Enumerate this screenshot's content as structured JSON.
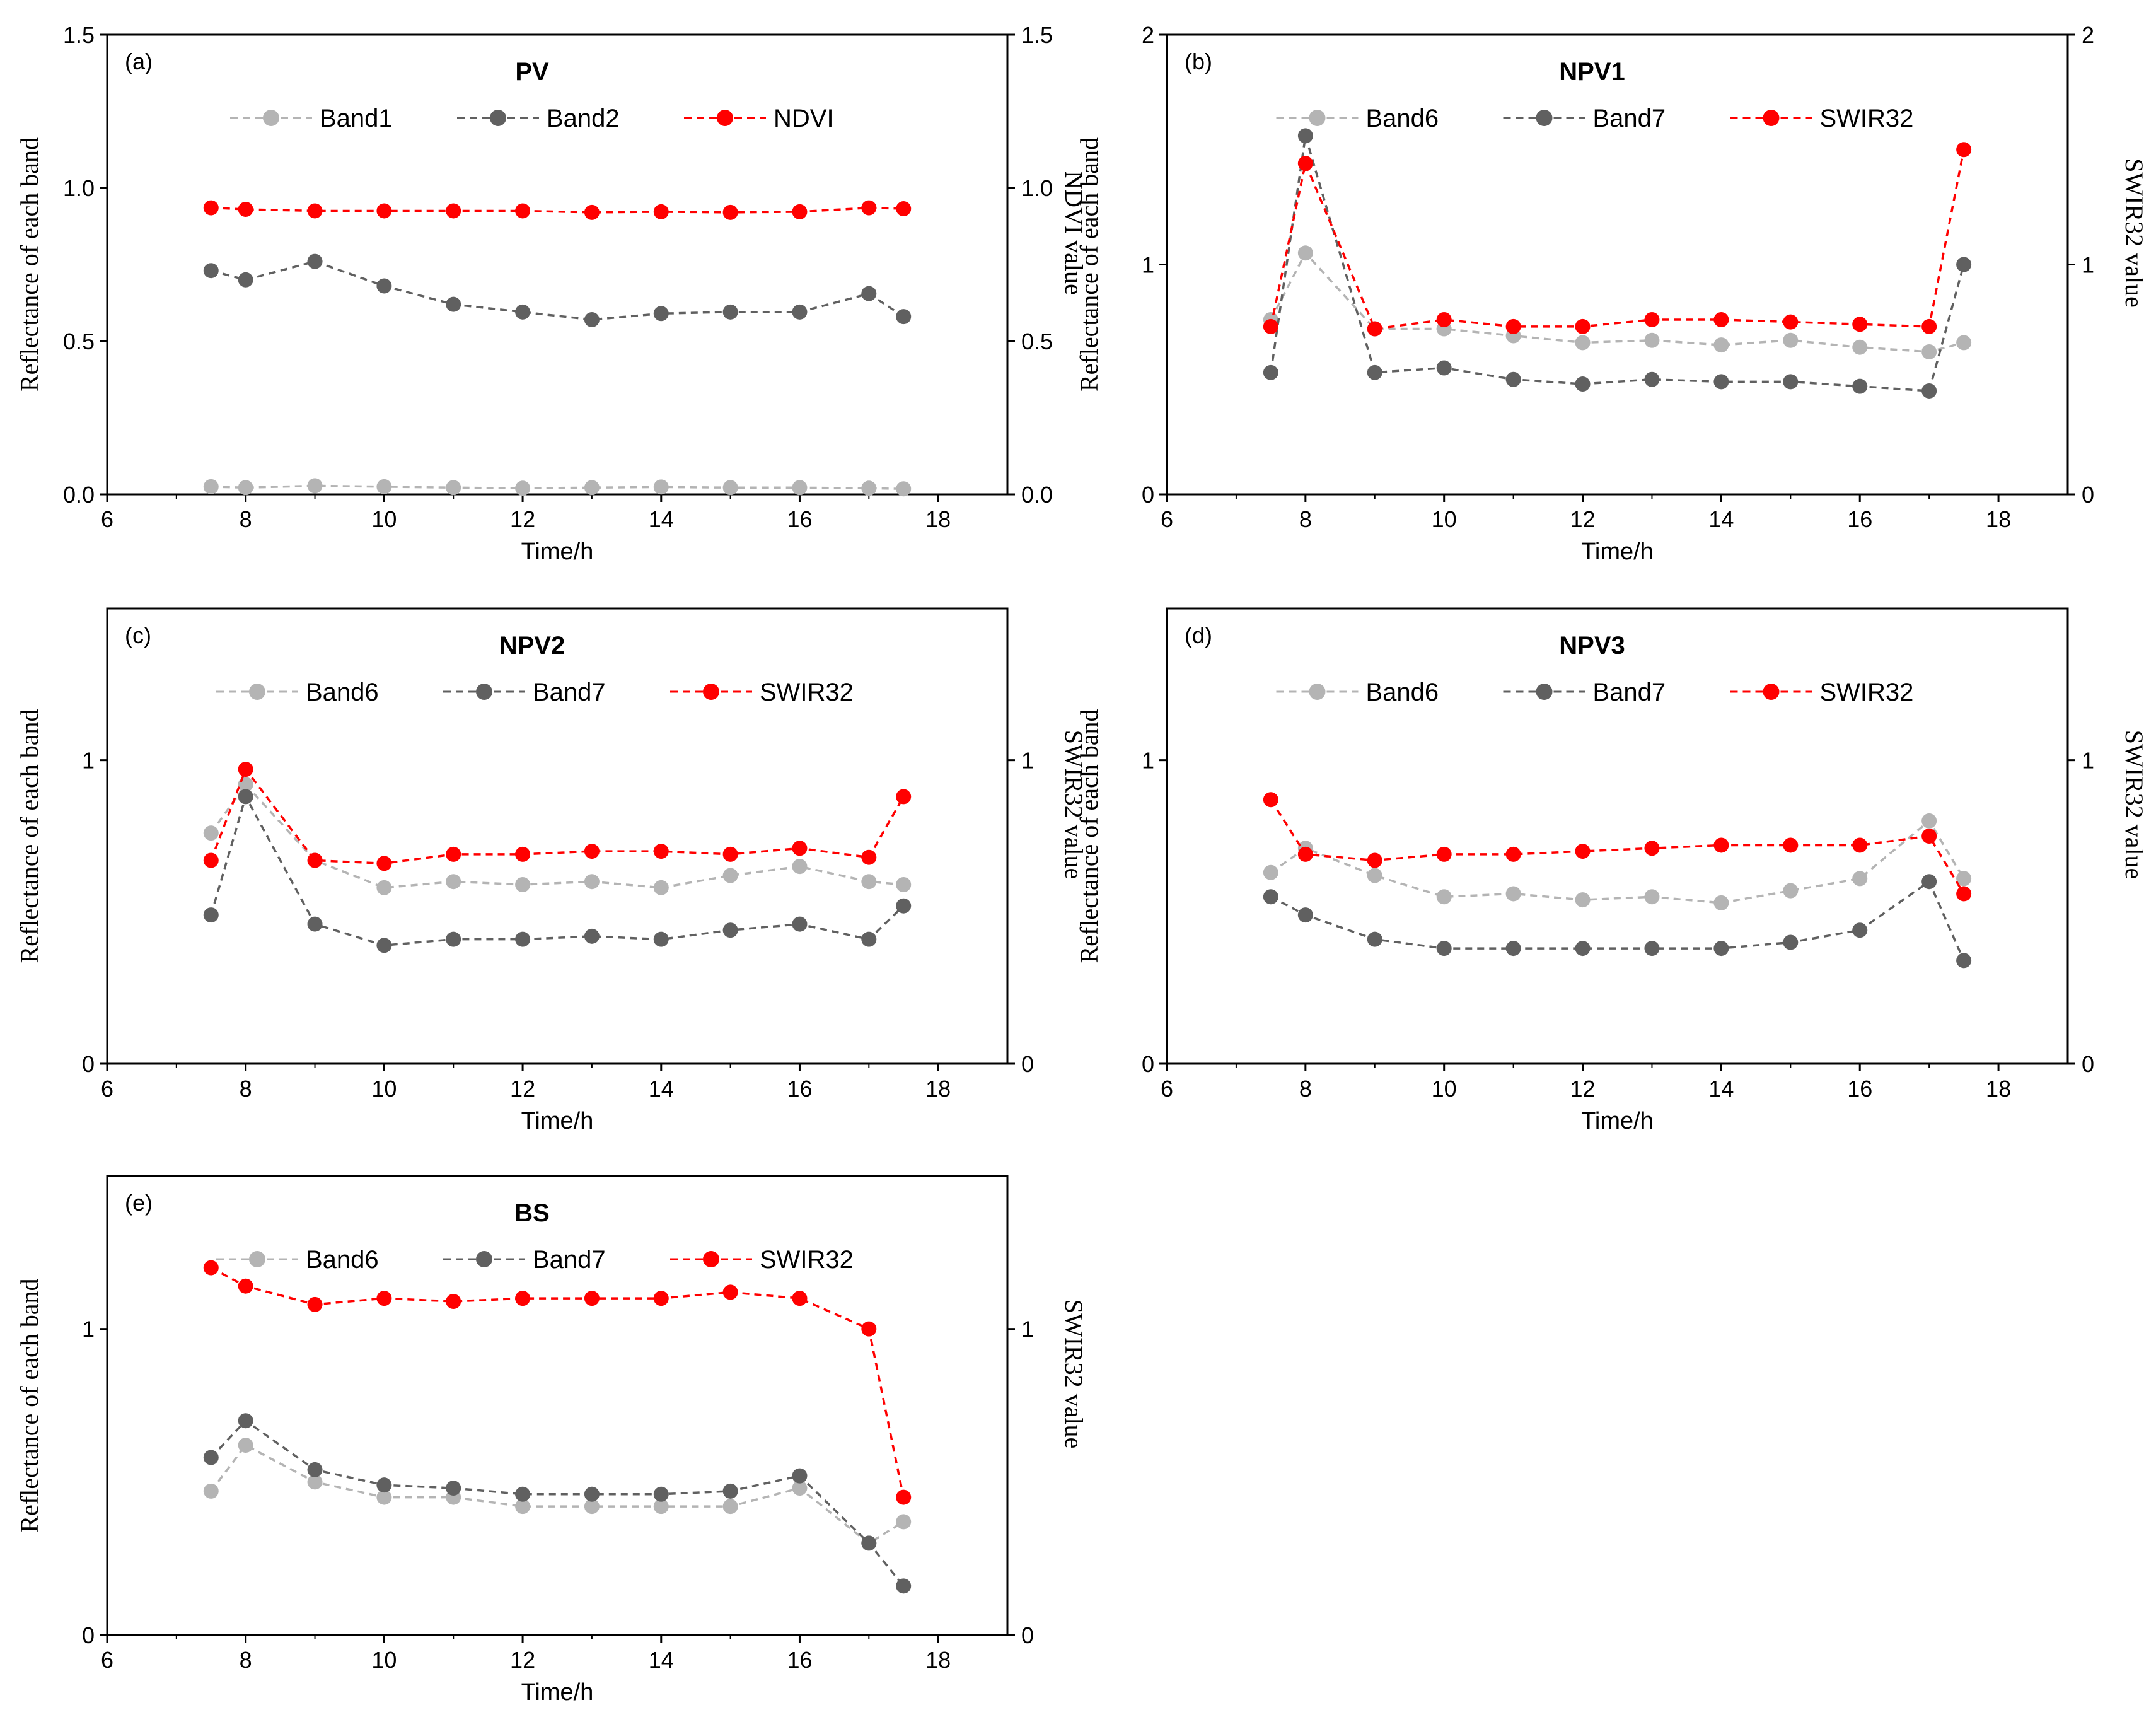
{
  "colors": {
    "band_light": "#b4b4b4",
    "band_dark": "#606060",
    "index": "#ff0000",
    "frame": "#000000"
  },
  "chart_data": [
    {
      "type": "line",
      "panel_label": "(a)",
      "title": "PV",
      "xlabel": "Time/h",
      "ylabel": "Reflectance of each band",
      "y2label": "NDVI  value",
      "xlim": [
        6,
        19
      ],
      "xticks": [
        "6",
        "8",
        "10",
        "12",
        "14",
        "16",
        "18"
      ],
      "ylim": [
        0,
        1.5
      ],
      "yticks": [
        "0.0",
        "0.5",
        "1.0",
        "1.5"
      ],
      "y2ticks": [
        "0.0",
        "0.5",
        "1.0",
        "1.5"
      ],
      "legend_loc": "top-center",
      "x": [
        7.5,
        8,
        9,
        10,
        11,
        12,
        13,
        14,
        15,
        16,
        17,
        17.5
      ],
      "series": [
        {
          "name": "Band1",
          "axis": "left",
          "color": "#b4b4b4",
          "values": [
            0.025,
            0.022,
            0.028,
            0.025,
            0.022,
            0.02,
            0.022,
            0.024,
            0.022,
            0.022,
            0.02,
            0.018
          ]
        },
        {
          "name": "Band2",
          "axis": "left",
          "color": "#606060",
          "values": [
            0.73,
            0.7,
            0.76,
            0.68,
            0.62,
            0.595,
            0.57,
            0.59,
            0.595,
            0.595,
            0.655,
            0.58
          ]
        },
        {
          "name": "NDVI",
          "axis": "right",
          "color": "#ff0000",
          "values": [
            0.935,
            0.93,
            0.925,
            0.925,
            0.925,
            0.925,
            0.92,
            0.922,
            0.92,
            0.922,
            0.935,
            0.932
          ]
        }
      ]
    },
    {
      "type": "line",
      "panel_label": "(b)",
      "title": "NPV1",
      "xlabel": "Time/h",
      "ylabel": "Reflectance of each band",
      "y2label": "SWIR32  value",
      "xlim": [
        6,
        19
      ],
      "xticks": [
        "6",
        "8",
        "10",
        "12",
        "14",
        "16",
        "18"
      ],
      "ylim": [
        0,
        2
      ],
      "yticks": [
        "0",
        "1",
        "2"
      ],
      "y2ticks": [
        "0",
        "1",
        "2"
      ],
      "legend_loc": "top-center",
      "x": [
        7.5,
        8,
        9,
        10,
        11,
        12,
        13,
        14,
        15,
        16,
        17,
        17.5
      ],
      "series": [
        {
          "name": "Band6",
          "axis": "left",
          "color": "#b4b4b4",
          "values": [
            0.76,
            1.05,
            0.72,
            0.72,
            0.69,
            0.66,
            0.67,
            0.65,
            0.67,
            0.64,
            0.62,
            0.66
          ]
        },
        {
          "name": "Band7",
          "axis": "left",
          "color": "#606060",
          "values": [
            0.53,
            1.56,
            0.53,
            0.55,
            0.5,
            0.48,
            0.5,
            0.49,
            0.49,
            0.47,
            0.45,
            1.0
          ]
        },
        {
          "name": "SWIR32",
          "axis": "right",
          "color": "#ff0000",
          "values": [
            0.73,
            1.44,
            0.72,
            0.76,
            0.73,
            0.73,
            0.76,
            0.76,
            0.75,
            0.74,
            0.73,
            1.5
          ]
        }
      ]
    },
    {
      "type": "line",
      "panel_label": "(c)",
      "title": "NPV2",
      "xlabel": "Time/h",
      "ylabel": "Reflectance of each band",
      "y2label": "SWIR32  value",
      "xlim": [
        6,
        19
      ],
      "xticks": [
        "6",
        "8",
        "10",
        "12",
        "14",
        "16",
        "18"
      ],
      "ylim": [
        0,
        1.5
      ],
      "yticks": [
        "0",
        "1"
      ],
      "y2ticks": [
        "0",
        "1"
      ],
      "legend_loc": "top-center",
      "x": [
        7.5,
        8,
        9,
        10,
        11,
        12,
        13,
        14,
        15,
        16,
        17,
        17.5
      ],
      "series": [
        {
          "name": "Band6",
          "axis": "left",
          "color": "#b4b4b4",
          "values": [
            0.76,
            0.92,
            0.67,
            0.58,
            0.6,
            0.59,
            0.6,
            0.58,
            0.62,
            0.65,
            0.6,
            0.59
          ]
        },
        {
          "name": "Band7",
          "axis": "left",
          "color": "#606060",
          "values": [
            0.49,
            0.88,
            0.46,
            0.39,
            0.41,
            0.41,
            0.42,
            0.41,
            0.44,
            0.46,
            0.41,
            0.52
          ]
        },
        {
          "name": "SWIR32",
          "axis": "right",
          "color": "#ff0000",
          "values": [
            0.67,
            0.97,
            0.67,
            0.66,
            0.69,
            0.69,
            0.7,
            0.7,
            0.69,
            0.71,
            0.68,
            0.88
          ]
        }
      ]
    },
    {
      "type": "line",
      "panel_label": "(d)",
      "title": "NPV3",
      "xlabel": "Time/h",
      "ylabel": "Reflectance of each band",
      "y2label": "SWIR32  value",
      "xlim": [
        6,
        19
      ],
      "xticks": [
        "6",
        "8",
        "10",
        "12",
        "14",
        "16",
        "18"
      ],
      "ylim": [
        0,
        1.5
      ],
      "yticks": [
        "0",
        "1"
      ],
      "y2ticks": [
        "0",
        "1"
      ],
      "legend_loc": "top-center",
      "x": [
        7.5,
        8,
        9,
        10,
        11,
        12,
        13,
        14,
        15,
        16,
        17,
        17.5
      ],
      "series": [
        {
          "name": "Band6",
          "axis": "left",
          "color": "#b4b4b4",
          "values": [
            0.63,
            0.71,
            0.62,
            0.55,
            0.56,
            0.54,
            0.55,
            0.53,
            0.57,
            0.61,
            0.8,
            0.61
          ]
        },
        {
          "name": "Band7",
          "axis": "left",
          "color": "#606060",
          "values": [
            0.55,
            0.49,
            0.41,
            0.38,
            0.38,
            0.38,
            0.38,
            0.38,
            0.4,
            0.44,
            0.6,
            0.34
          ]
        },
        {
          "name": "SWIR32",
          "axis": "right",
          "color": "#ff0000",
          "values": [
            0.87,
            0.69,
            0.67,
            0.69,
            0.69,
            0.7,
            0.71,
            0.72,
            0.72,
            0.72,
            0.75,
            0.56
          ]
        }
      ]
    },
    {
      "type": "line",
      "panel_label": "(e)",
      "title": "BS",
      "xlabel": "Time/h",
      "ylabel": "Reflectance of each band",
      "y2label": "SWIR32  value",
      "xlim": [
        6,
        19
      ],
      "xticks": [
        "6",
        "8",
        "10",
        "12",
        "14",
        "16",
        "18"
      ],
      "ylim": [
        0,
        1.5
      ],
      "yticks": [
        "0",
        "1"
      ],
      "y2ticks": [
        "0",
        "1"
      ],
      "legend_loc": "top-center",
      "x": [
        7.5,
        8,
        9,
        10,
        11,
        12,
        13,
        14,
        15,
        16,
        17,
        17.5
      ],
      "series": [
        {
          "name": "Band6",
          "axis": "left",
          "color": "#b4b4b4",
          "values": [
            0.47,
            0.62,
            0.5,
            0.45,
            0.45,
            0.42,
            0.42,
            0.42,
            0.42,
            0.48,
            0.3,
            0.37
          ]
        },
        {
          "name": "Band7",
          "axis": "left",
          "color": "#606060",
          "values": [
            0.58,
            0.7,
            0.54,
            0.49,
            0.48,
            0.46,
            0.46,
            0.46,
            0.47,
            0.52,
            0.3,
            0.16
          ]
        },
        {
          "name": "SWIR32",
          "axis": "right",
          "color": "#ff0000",
          "values": [
            1.2,
            1.14,
            1.08,
            1.1,
            1.09,
            1.1,
            1.1,
            1.1,
            1.12,
            1.1,
            1.0,
            0.45
          ]
        }
      ]
    }
  ]
}
